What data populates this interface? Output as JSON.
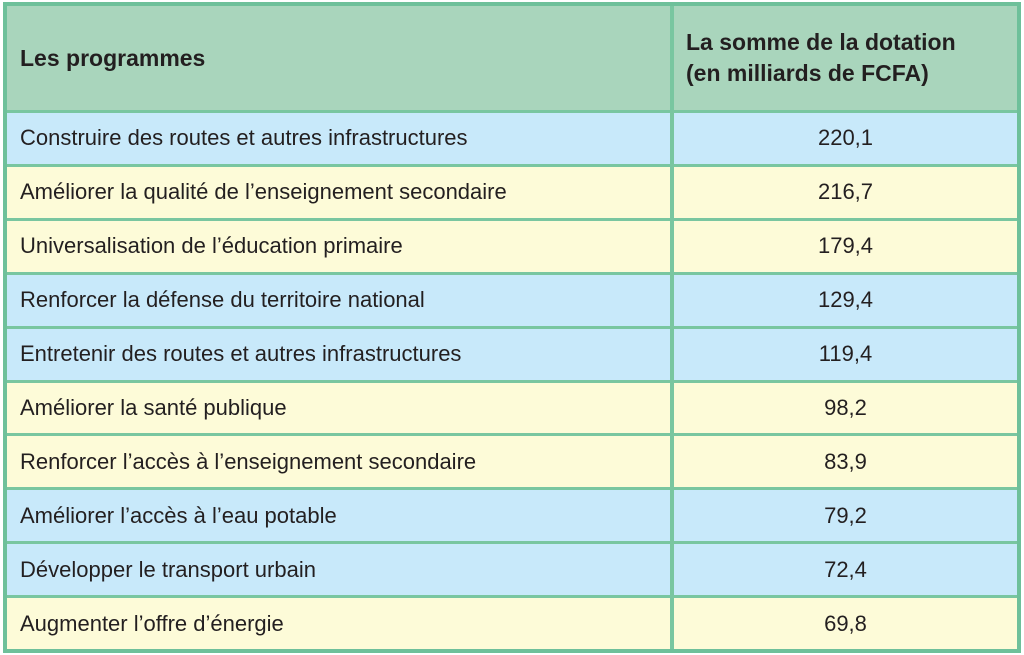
{
  "colors": {
    "header_bg": "#a9d5bc",
    "row_blue": "#c8e9fa",
    "row_yellow": "#fdfbd8",
    "border": "#79c6a0",
    "outer_border": "#6ec09a",
    "text": "#231f20"
  },
  "table": {
    "header": {
      "programs": "Les programmes",
      "amount": "La somme de la dotation\n(en milliards de FCFA)"
    },
    "rows": [
      {
        "program": "Construire des routes et autres infrastructures",
        "value": "220,1",
        "tint": "blue"
      },
      {
        "program": "Améliorer la qualité de l’enseignement secondaire",
        "value": "216,7",
        "tint": "yellow"
      },
      {
        "program": "Universalisation de l’éducation primaire",
        "value": "179,4",
        "tint": "yellow"
      },
      {
        "program": "Renforcer la défense du territoire national",
        "value": "129,4",
        "tint": "blue"
      },
      {
        "program": "Entretenir des routes et autres infrastructures",
        "value": "119,4",
        "tint": "blue"
      },
      {
        "program": "Améliorer la santé publique",
        "value": "98,2",
        "tint": "yellow"
      },
      {
        "program": "Renforcer l’accès à l’enseignement secondaire",
        "value": "83,9",
        "tint": "yellow"
      },
      {
        "program": "Améliorer l’accès à l’eau potable",
        "value": "79,2",
        "tint": "blue"
      },
      {
        "program": "Développer le transport urbain",
        "value": "72,4",
        "tint": "blue"
      },
      {
        "program": "Augmenter l’offre d’énergie",
        "value": "69,8",
        "tint": "yellow"
      }
    ]
  },
  "chart_data": {
    "type": "table",
    "title": "",
    "columns": [
      "Les programmes",
      "La somme de la dotation (en milliards de FCFA)"
    ],
    "rows": [
      [
        "Construire des routes et autres infrastructures",
        220.1
      ],
      [
        "Améliorer la qualité de l’enseignement secondaire",
        216.7
      ],
      [
        "Universalisation de l’éducation primaire",
        179.4
      ],
      [
        "Renforcer la défense du territoire national",
        129.4
      ],
      [
        "Entretenir des routes et autres infrastructures",
        119.4
      ],
      [
        "Améliorer la santé publique",
        98.2
      ],
      [
        "Renforcer l’accès à l’enseignement secondaire",
        83.9
      ],
      [
        "Améliorer l’accès à l’eau potable",
        79.2
      ],
      [
        "Développer le transport urbain",
        72.4
      ],
      [
        "Augmenter l’offre d’énergie",
        69.8
      ]
    ],
    "value_format": "decimal comma, one decimal place",
    "layout": {
      "header_bg": "green",
      "row_tints": [
        "blue",
        "yellow",
        "yellow",
        "blue",
        "blue",
        "yellow",
        "yellow",
        "blue",
        "blue",
        "yellow"
      ],
      "grid": true
    }
  }
}
